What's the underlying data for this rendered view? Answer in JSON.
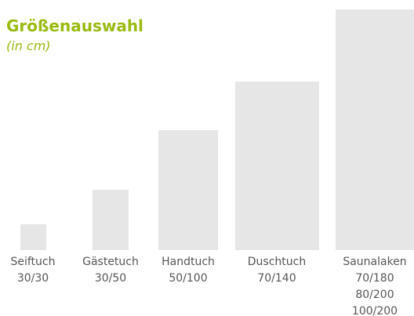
{
  "header": {
    "title": "Größenauswahl",
    "subtitle": "(in cm)"
  },
  "items": [
    {
      "name": "Seiftuch",
      "sizes": [
        "30/30"
      ]
    },
    {
      "name": "Gästetuch",
      "sizes": [
        "30/50"
      ]
    },
    {
      "name": "Handtuch",
      "sizes": [
        "50/100"
      ]
    },
    {
      "name": "Duschtuch",
      "sizes": [
        "70/140"
      ]
    },
    {
      "name": "Saunalaken",
      "sizes": [
        "70/180",
        "80/200",
        "100/200"
      ]
    }
  ]
}
